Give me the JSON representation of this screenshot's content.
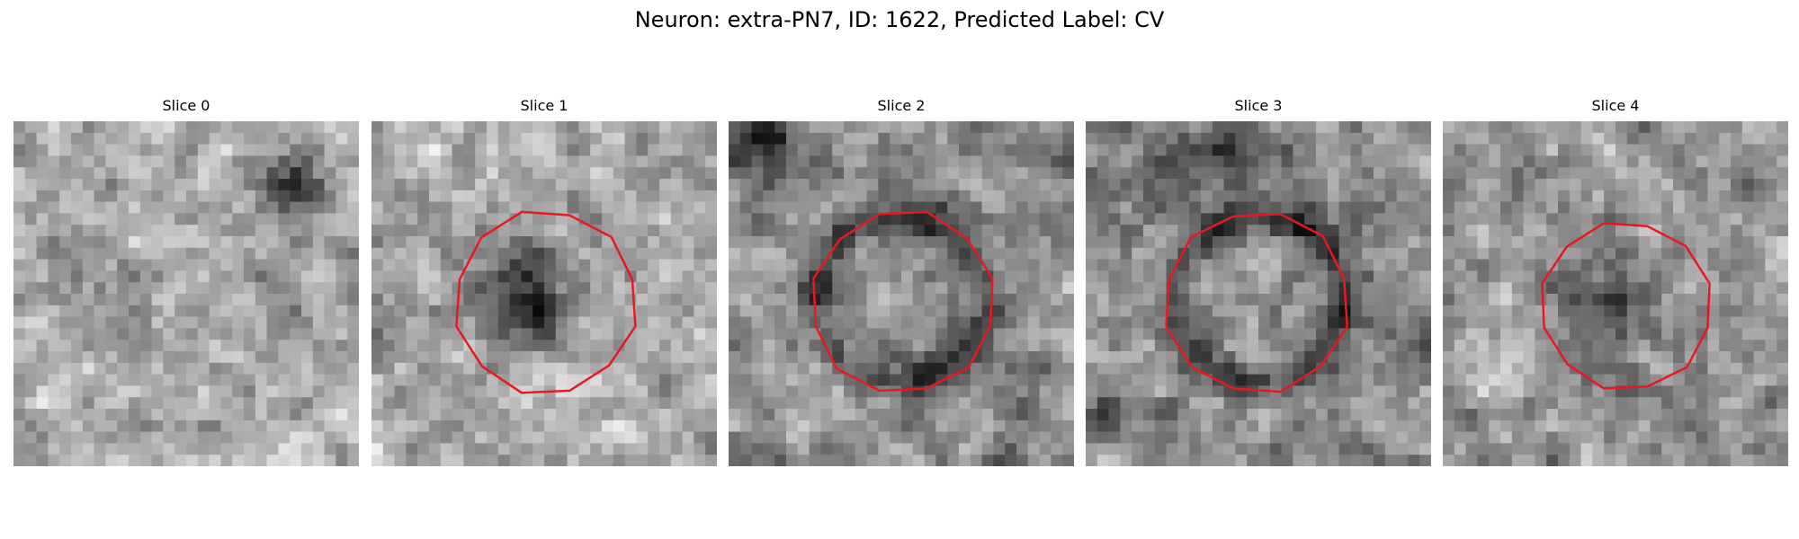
{
  "figure": {
    "title": "Neuron: extra-PN7, ID: 1622, Predicted Label: CV",
    "outline_color": "#e8191c",
    "colormap": "gray"
  },
  "panels": [
    {
      "title": "Slice 0",
      "has_outline": false
    },
    {
      "title": "Slice 1",
      "has_outline": true
    },
    {
      "title": "Slice 2",
      "has_outline": true
    },
    {
      "title": "Slice 3",
      "has_outline": true
    },
    {
      "title": "Slice 4",
      "has_outline": true
    }
  ]
}
